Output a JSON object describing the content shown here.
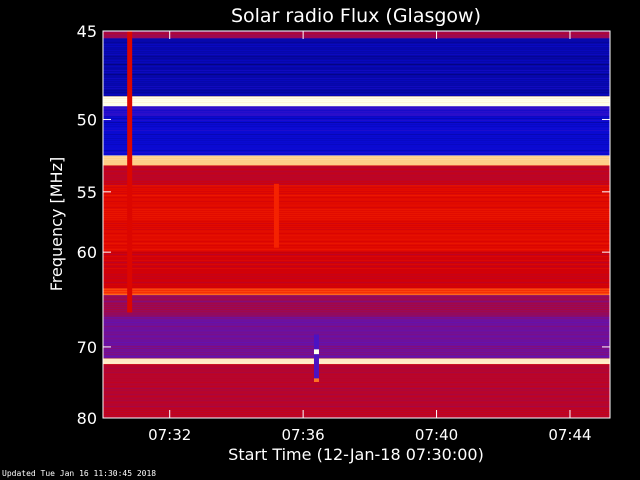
{
  "chart_data": {
    "type": "heatmap",
    "title": "Solar radio Flux (Glasgow)",
    "xlabel": "Start Time (12-Jan-18 07:30:00)",
    "ylabel": "Frequency [MHz]",
    "x_unit": "minutes after 07:30:00",
    "xlim": [
      0,
      15.2
    ],
    "ylim": [
      45,
      80
    ],
    "y_scale": "reciprocal",
    "y_ticks": [
      45,
      50,
      55,
      60,
      70,
      80
    ],
    "y_tick_labels": [
      "45",
      "50",
      "55",
      "60",
      "70",
      "80"
    ],
    "x_ticks": [
      2,
      6,
      10,
      14
    ],
    "x_tick_labels": [
      "07:32",
      "07:36",
      "07:40",
      "07:44"
    ],
    "colormap": "blue-red-yellow-white",
    "bands": [
      {
        "from": 45.0,
        "to": 45.4,
        "level": 0.45
      },
      {
        "from": 45.4,
        "to": 48.6,
        "level": 0.08
      },
      {
        "from": 48.6,
        "to": 49.2,
        "level": 1.0
      },
      {
        "from": 49.2,
        "to": 49.8,
        "level": 0.18
      },
      {
        "from": 49.8,
        "to": 52.4,
        "level": 0.12
      },
      {
        "from": 52.4,
        "to": 53.1,
        "level": 0.92
      },
      {
        "from": 53.1,
        "to": 54.5,
        "level": 0.52
      },
      {
        "from": 54.5,
        "to": 60.0,
        "level": 0.62
      },
      {
        "from": 60.0,
        "to": 63.5,
        "level": 0.56
      },
      {
        "from": 63.5,
        "to": 64.2,
        "level": 0.75
      },
      {
        "from": 64.2,
        "to": 66.5,
        "level": 0.42
      },
      {
        "from": 66.5,
        "to": 71.5,
        "level": 0.33
      },
      {
        "from": 71.5,
        "to": 72.2,
        "level": 0.97
      },
      {
        "from": 72.2,
        "to": 80.0,
        "level": 0.5
      }
    ],
    "features": [
      {
        "time": 6.4,
        "freq_from": 68.5,
        "freq_to": 74.5,
        "level": 0.25
      },
      {
        "time": 6.4,
        "freq_from": 70.3,
        "freq_to": 70.9,
        "level": 1.0
      },
      {
        "time": 6.4,
        "freq_from": 74.1,
        "freq_to": 74.6,
        "level": 0.8
      },
      {
        "time": 5.2,
        "freq_from": 54.4,
        "freq_to": 59.6,
        "level": 0.7
      },
      {
        "time": 0.8,
        "freq_from": 45.0,
        "freq_to": 66.0,
        "level": 0.6
      }
    ]
  },
  "footer": "Updated Tue Jan 16 11:30:45 2018"
}
